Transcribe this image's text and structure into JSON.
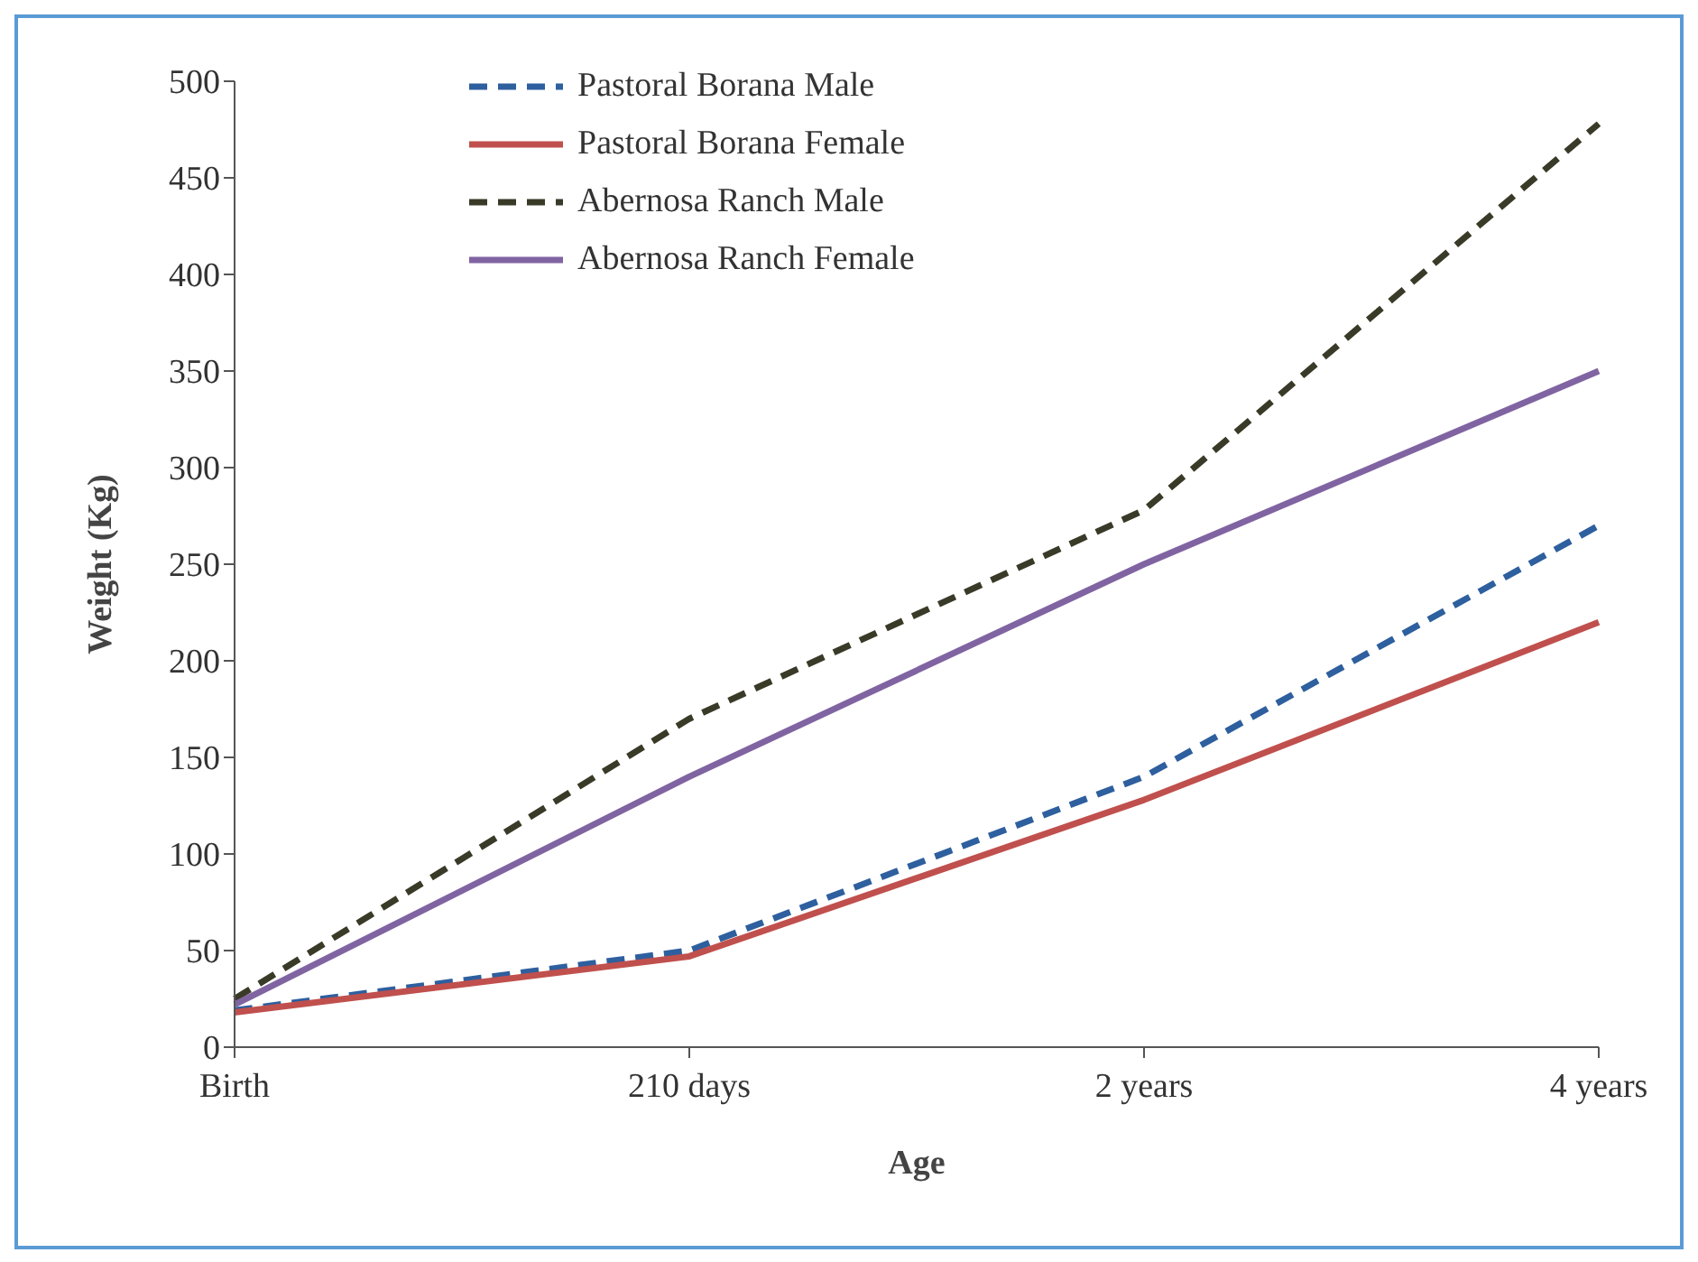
{
  "chart_data": {
    "type": "line",
    "xlabel": "Age",
    "ylabel": "Weight  (Kg)",
    "categories": [
      "Birth",
      "210 days",
      "2 years",
      "4 years"
    ],
    "series": [
      {
        "name": "Pastoral Borana Male",
        "color": "#2e5f9e",
        "line_style": "dashed",
        "values": [
          19,
          50,
          140,
          270
        ]
      },
      {
        "name": "Pastoral Borana Female",
        "color": "#c0504d",
        "line_style": "solid",
        "values": [
          18,
          47,
          128,
          220
        ]
      },
      {
        "name": "Abernosa Ranch Male",
        "color": "#3a3a28",
        "line_style": "dashed",
        "values": [
          25,
          170,
          278,
          478
        ]
      },
      {
        "name": "Abernosa Ranch Female",
        "color": "#8064a2",
        "line_style": "solid",
        "values": [
          22,
          140,
          250,
          350
        ]
      }
    ],
    "ylim": [
      0,
      500
    ],
    "yticks": [
      0,
      50,
      100,
      150,
      200,
      250,
      300,
      350,
      400,
      450,
      500
    ],
    "legend": "top left",
    "marker": "none"
  }
}
